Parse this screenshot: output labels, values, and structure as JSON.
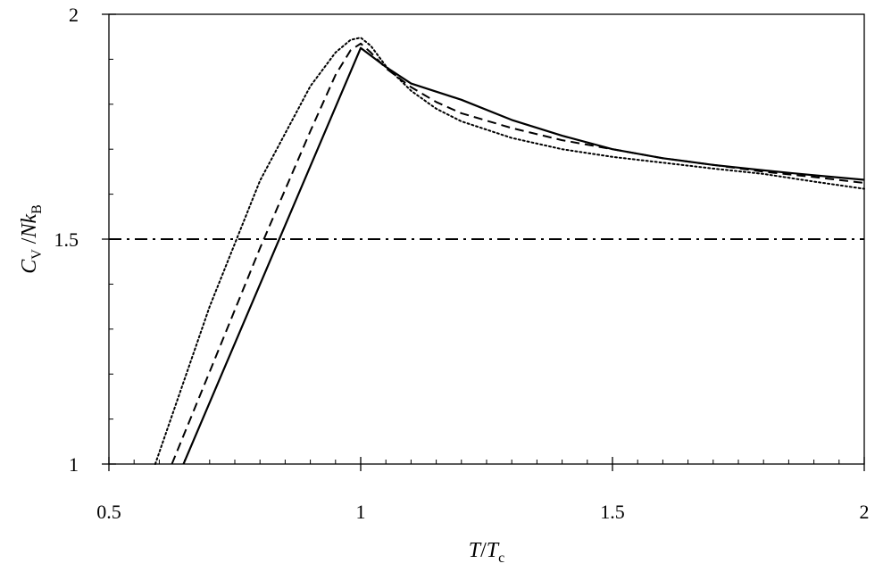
{
  "chart_data": {
    "type": "line",
    "xlabel": {
      "main": "T",
      "sep": "/",
      "main2": "T",
      "sub2": "c"
    },
    "ylabel": {
      "main": "C",
      "sub": "V",
      "sep": " /",
      "main2": "Nk",
      "sub2": "B"
    },
    "xlim": [
      0.5,
      2
    ],
    "ylim": [
      1,
      2
    ],
    "xticks": [
      0.5,
      1,
      1.5,
      2
    ],
    "xtick_labels": [
      "0.5",
      "1",
      "1.5",
      "2"
    ],
    "yticks": [
      1,
      1.5,
      2
    ],
    "ytick_labels": [
      "1",
      "1.5",
      "2"
    ],
    "grid": false,
    "series": [
      {
        "style": "solid",
        "color": "#000000",
        "x": [
          0.648,
          1.0,
          1.05,
          1.1,
          1.2,
          1.3,
          1.4,
          1.5,
          1.6,
          1.7,
          1.8,
          1.9,
          2.0
        ],
        "y": [
          1.0,
          1.925,
          1.883,
          1.846,
          1.81,
          1.765,
          1.73,
          1.7,
          1.68,
          1.665,
          1.653,
          1.642,
          1.632
        ]
      },
      {
        "style": "dashed",
        "color": "#000000",
        "x": [
          0.625,
          0.7,
          0.8,
          0.9,
          0.95,
          0.98,
          1.0,
          1.02,
          1.05,
          1.1,
          1.15,
          1.2,
          1.3,
          1.4,
          1.5,
          1.6,
          1.7,
          1.8,
          1.9,
          2.0
        ],
        "y": [
          1.0,
          1.205,
          1.48,
          1.74,
          1.865,
          1.92,
          1.935,
          1.915,
          1.88,
          1.838,
          1.805,
          1.78,
          1.747,
          1.72,
          1.7,
          1.68,
          1.665,
          1.65,
          1.638,
          1.625
        ]
      },
      {
        "style": "dotted",
        "color": "#000000",
        "x": [
          0.592,
          0.7,
          0.8,
          0.9,
          0.95,
          0.98,
          1.0,
          1.02,
          1.05,
          1.1,
          1.15,
          1.2,
          1.3,
          1.4,
          1.5,
          1.6,
          1.7,
          1.8,
          1.9,
          2.0
        ],
        "y": [
          1.0,
          1.35,
          1.63,
          1.84,
          1.915,
          1.943,
          1.948,
          1.93,
          1.885,
          1.83,
          1.79,
          1.762,
          1.725,
          1.7,
          1.683,
          1.67,
          1.657,
          1.645,
          1.628,
          1.612
        ]
      },
      {
        "style": "dashdot",
        "color": "#000000",
        "x": [
          0.5,
          2.0
        ],
        "y": [
          1.5,
          1.5
        ]
      }
    ]
  }
}
